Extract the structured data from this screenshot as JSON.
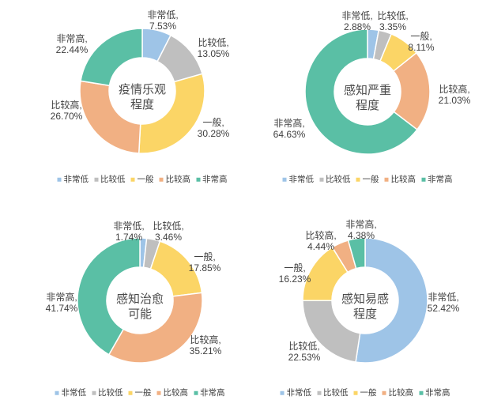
{
  "background": "#ffffff",
  "text_colors": {
    "slice_label": "#3F3F3F",
    "center_title": "#4A4A4A",
    "legend": "#3F3F3F"
  },
  "palette": {
    "非常低": "#9EC4E7",
    "比较低": "#BFBFBF",
    "一般": "#FBD566",
    "比较高": "#F1B083",
    "非常高": "#5ABFA5"
  },
  "label_format": "{category}, {value}%",
  "chart_data": [
    {
      "type": "donut",
      "title": "疫情乐观程度",
      "title_lines": [
        "疫情乐观",
        "程度"
      ],
      "categories": [
        "非常低",
        "比较低",
        "一般",
        "比较高",
        "非常高"
      ],
      "values": [
        7.53,
        13.05,
        30.28,
        26.7,
        22.44
      ],
      "display_labels": [
        "非常低, 7.53%",
        "比较低, 13.05%",
        "一般, 30.28%",
        "比较高, 26.70%",
        "非常高, 22.44%"
      ],
      "legend": [
        "非常低",
        "比较低",
        "一般",
        "比较高",
        "非常高"
      ],
      "legend_position": "bottom",
      "start_angle_deg": 0,
      "direction": "clockwise"
    },
    {
      "type": "donut",
      "title": "感知严重程度",
      "title_lines": [
        "感知严重",
        "程度"
      ],
      "categories": [
        "非常低",
        "比较低",
        "一般",
        "比较高",
        "非常高"
      ],
      "values": [
        2.88,
        3.35,
        8.11,
        21.03,
        64.63
      ],
      "display_labels": [
        "非常低, 2.88%",
        "比较低, 3.35%",
        "一般, 8.11%",
        "比较高, 21.03%",
        "非常高, 64.63%"
      ],
      "legend": [
        "非常低",
        "比较低",
        "一般",
        "比较高",
        "非常高"
      ],
      "legend_position": "bottom",
      "start_angle_deg": 0,
      "direction": "clockwise"
    },
    {
      "type": "donut",
      "title": "感知治愈可能",
      "title_lines": [
        "感知治愈",
        "可能"
      ],
      "categories": [
        "非常低",
        "比较低",
        "一般",
        "比较高",
        "非常高"
      ],
      "values": [
        1.74,
        3.46,
        17.85,
        35.21,
        41.74
      ],
      "display_labels": [
        "非常低, 1.74%",
        "比较低, 3.46%",
        "一般, 17.85%",
        "比较高, 35.21%",
        "非常高, 41.74%"
      ],
      "legend": [
        "非常低",
        "比较低",
        "一般",
        "比较高",
        "非常高"
      ],
      "legend_position": "bottom",
      "start_angle_deg": 0,
      "direction": "clockwise"
    },
    {
      "type": "donut",
      "title": "感知易感程度",
      "title_lines": [
        "感知易感",
        "程度"
      ],
      "categories": [
        "非常低",
        "比较低",
        "一般",
        "比较高",
        "非常高"
      ],
      "values": [
        52.42,
        22.53,
        16.23,
        4.44,
        4.38
      ],
      "display_labels": [
        "非常低, 52.42%",
        "比较低, 22.53%",
        "一般, 16.23%",
        "比较高, 4.44%",
        "非常高, 4.38%"
      ],
      "legend": [
        "非常低",
        "比较低",
        "一般",
        "比较高",
        "非常高"
      ],
      "legend_position": "bottom",
      "start_angle_deg": 0,
      "direction": "clockwise"
    }
  ]
}
